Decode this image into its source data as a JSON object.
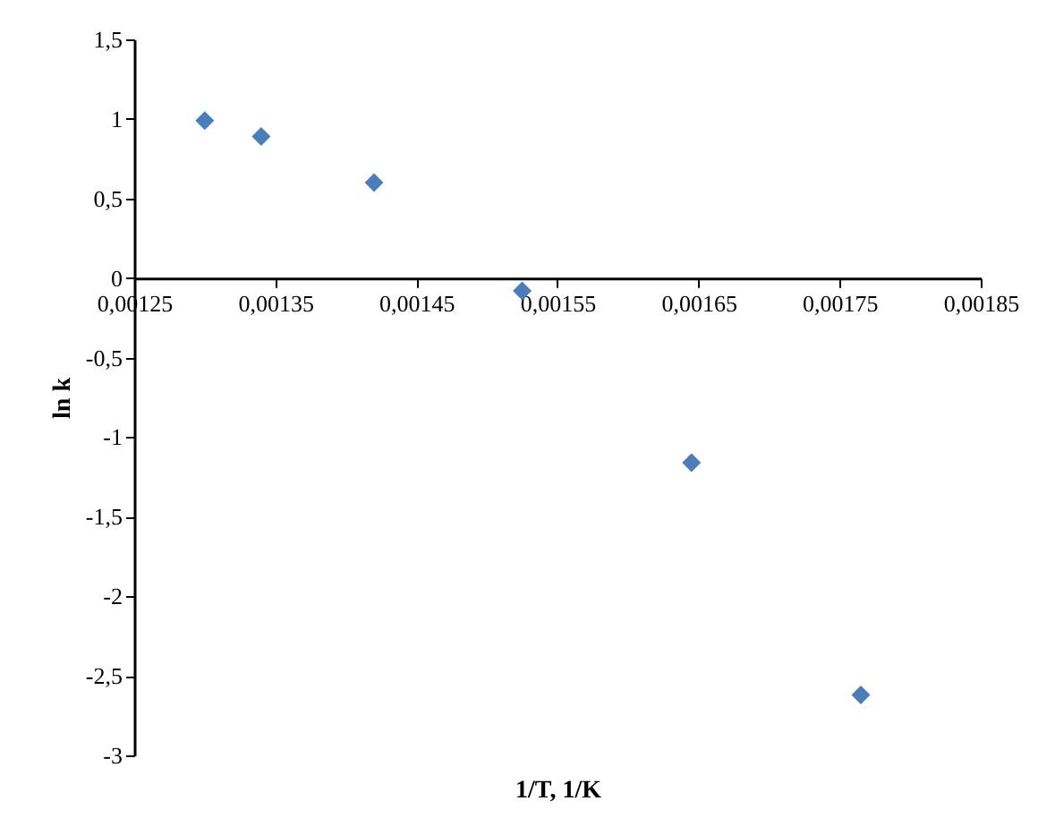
{
  "chart_data": {
    "type": "scatter",
    "xlabel": "1/T, 1/K",
    "ylabel": "ln k",
    "x": [
      0.0013,
      0.00134,
      0.00142,
      0.001525,
      0.001645,
      0.001765
    ],
    "series": [
      {
        "color": "#4a7ebb",
        "values": [
          0.99,
          0.89,
          0.6,
          -0.08,
          -1.16,
          -2.62
        ]
      }
    ],
    "marker": "diamond",
    "grid": false,
    "xlim": [
      0.00125,
      0.00185
    ],
    "xticks": [
      {
        "value": 0.00125,
        "label": "0,00125"
      },
      {
        "value": 0.00135,
        "label": "0,00135"
      },
      {
        "value": 0.00145,
        "label": "0,00145"
      },
      {
        "value": 0.00155,
        "label": "0,00155"
      },
      {
        "value": 0.00165,
        "label": "0,00165"
      },
      {
        "value": 0.00175,
        "label": "0,00175"
      },
      {
        "value": 0.00185,
        "label": "0,00185"
      }
    ],
    "ylim": [
      -3,
      1.5
    ],
    "yticks": [
      {
        "value": -3,
        "label": "-3"
      },
      {
        "value": -2.5,
        "label": "-2,5"
      },
      {
        "value": -2,
        "label": "-2"
      },
      {
        "value": -1.5,
        "label": "-1,5"
      },
      {
        "value": -1,
        "label": "-1"
      },
      {
        "value": -0.5,
        "label": "-0,5"
      },
      {
        "value": 0,
        "label": "0"
      },
      {
        "value": 0.5,
        "label": "0,5"
      },
      {
        "value": 1,
        "label": "1"
      },
      {
        "value": 1.5,
        "label": "1,5"
      }
    ]
  }
}
